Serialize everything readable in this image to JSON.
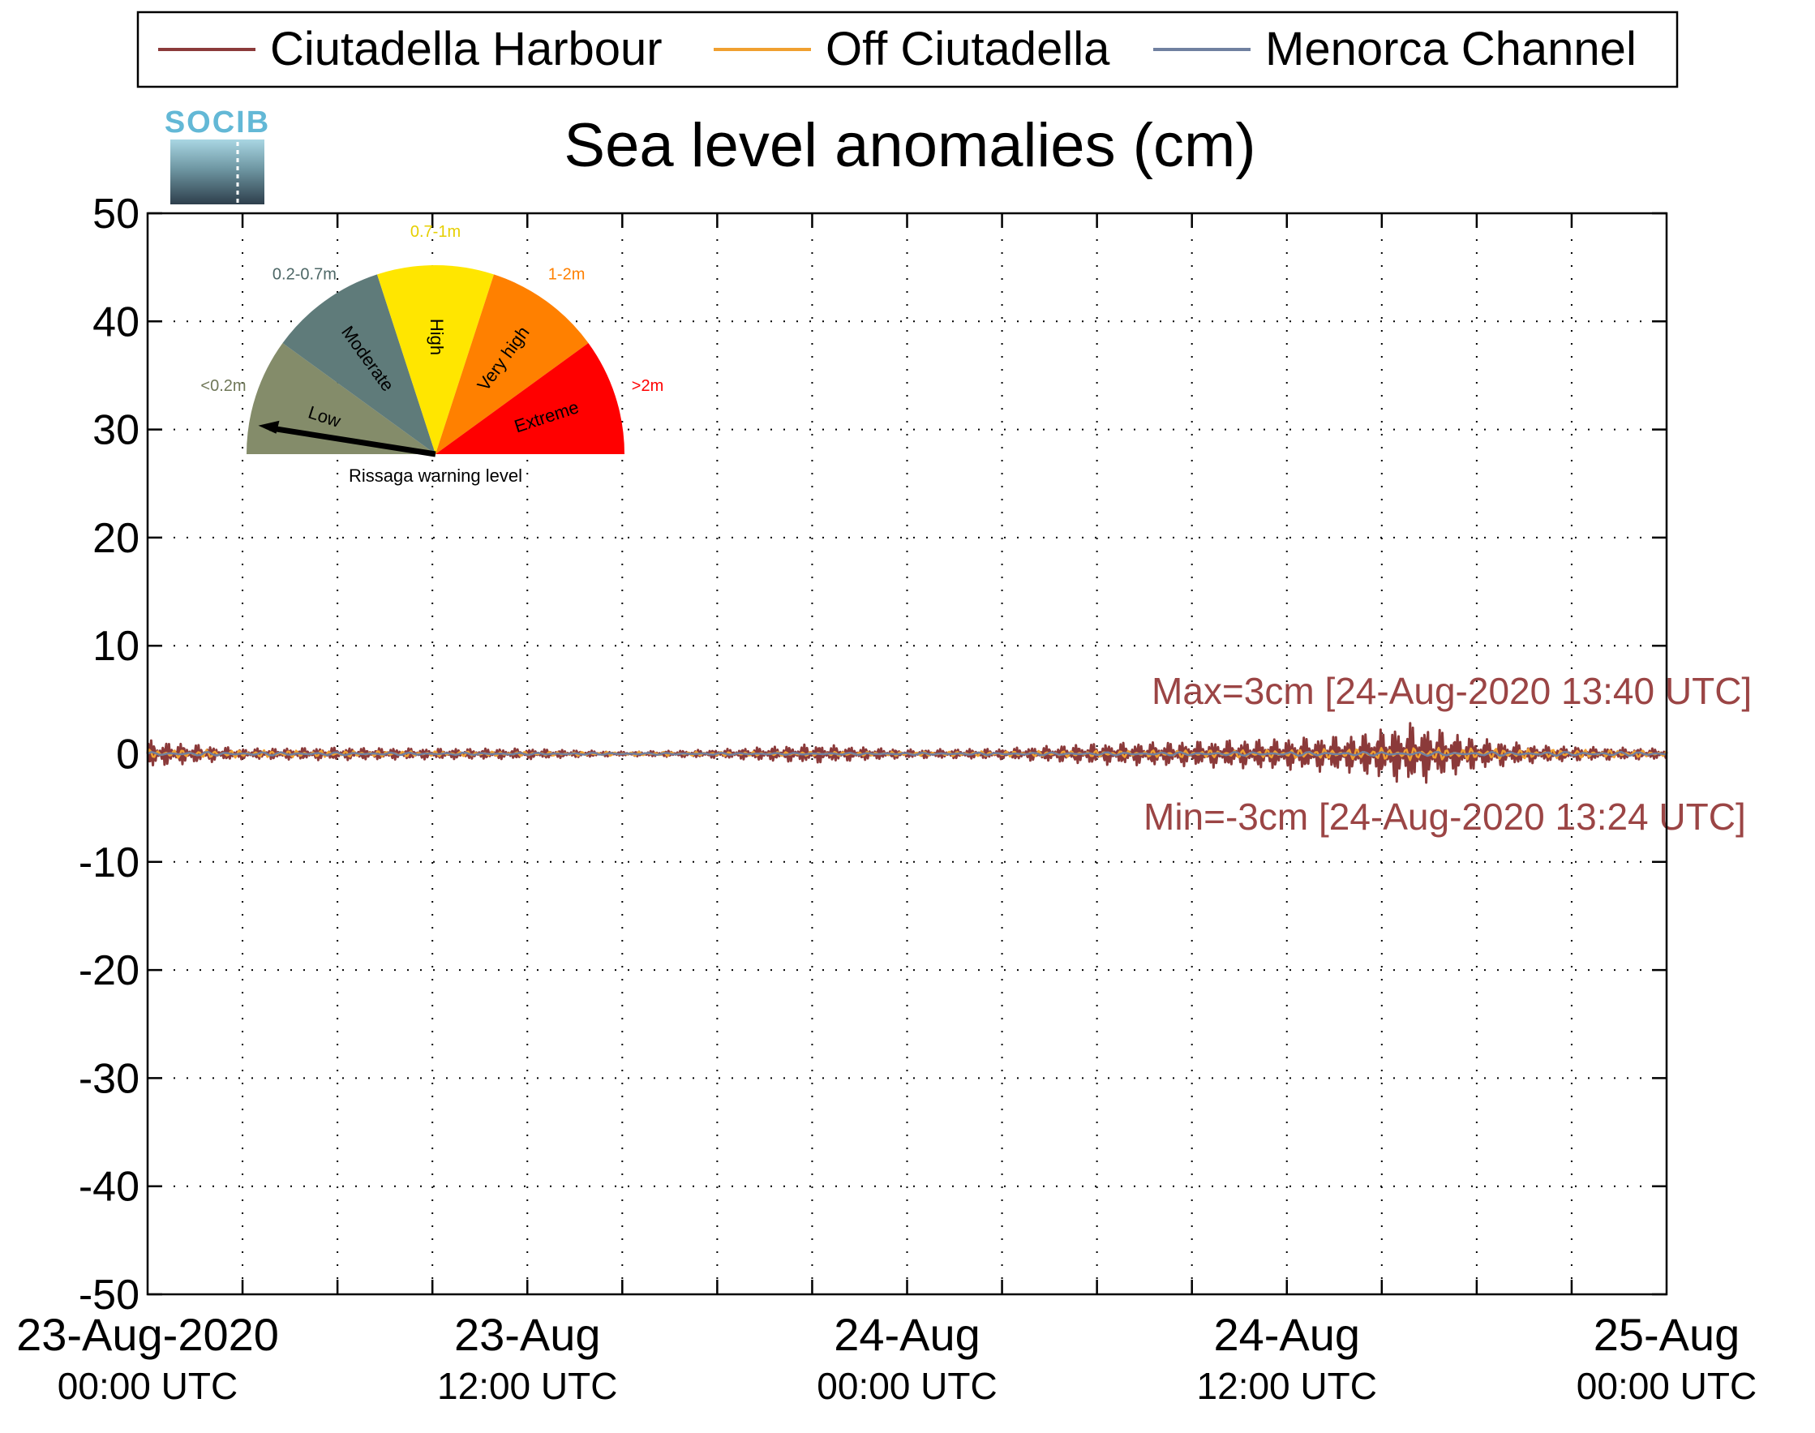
{
  "title": "Sea level anomalies (cm)",
  "logo_text": "SOCIB",
  "legend": {
    "placement": "top",
    "entries": [
      {
        "label": "Ciutadella Harbour",
        "color": "#8b3a3a"
      },
      {
        "label": "Off Ciutadella",
        "color": "#f0a030"
      },
      {
        "label": "Menorca Channel",
        "color": "#7080a0"
      }
    ]
  },
  "gauge": {
    "title": "Rissaga warning level",
    "level": "Low",
    "segments": [
      {
        "name": "Low",
        "range": "<0.2m",
        "color": "#848c6a",
        "label_color": "#6f7757"
      },
      {
        "name": "Moderate",
        "range": "0.2-0.7m",
        "color": "#5f7b7a",
        "label_color": "#4d6766"
      },
      {
        "name": "High",
        "range": "0.7-1m",
        "color": "#ffe600",
        "label_color": "#e6cf00"
      },
      {
        "name": "Very high",
        "range": "1-2m",
        "color": "#ff8000",
        "label_color": "#ff8000"
      },
      {
        "name": "Extreme",
        "range": ">2m",
        "color": "#ff0000",
        "label_color": "#ff0000"
      }
    ]
  },
  "annotations": {
    "max": "Max=3cm [24-Aug-2020 13:40 UTC]",
    "min": "Min=-3cm [24-Aug-2020 13:24 UTC]",
    "color": "#9b4545"
  },
  "chart_data": {
    "type": "line",
    "title": "Sea level anomalies (cm)",
    "xlabel": "",
    "ylabel": "",
    "x_range": [
      "2020-08-23 00:00 UTC",
      "2020-08-25 00:00 UTC"
    ],
    "ylim": [
      -50,
      50
    ],
    "yticks": [
      50,
      40,
      30,
      20,
      10,
      0,
      -10,
      -20,
      -30,
      -40,
      -50
    ],
    "yticklabels": [
      "50",
      "40",
      "30",
      "20",
      "10",
      "0",
      "-10",
      "-20",
      "-30",
      "-40",
      "-50"
    ],
    "xtick_labels": [
      {
        "x": "2020-08-23 00:00",
        "line1": "23-Aug-2020",
        "line2": "00:00 UTC"
      },
      {
        "x": "2020-08-23 12:00",
        "line1": "23-Aug",
        "line2": "12:00 UTC"
      },
      {
        "x": "2020-08-24 00:00",
        "line1": "24-Aug",
        "line2": "00:00 UTC"
      },
      {
        "x": "2020-08-24 12:00",
        "line1": "24-Aug",
        "line2": "12:00 UTC"
      },
      {
        "x": "2020-08-25 00:00",
        "line1": "25-Aug",
        "line2": "00:00 UTC"
      }
    ],
    "minor_xticks_hours": 3,
    "grid": true,
    "series": [
      {
        "name": "Ciutadella Harbour",
        "color": "#8b3a3a",
        "envelope_hours": [
          0,
          3,
          6,
          9,
          12,
          15,
          18,
          21,
          24,
          27,
          30,
          33,
          36,
          38,
          40,
          42,
          44,
          46,
          48
        ],
        "envelope_cm": [
          1.3,
          0.5,
          0.6,
          0.5,
          0.5,
          0.2,
          0.4,
          0.9,
          0.4,
          0.5,
          1.0,
          1.2,
          1.5,
          1.8,
          3.0,
          1.5,
          0.8,
          0.6,
          0.5
        ]
      },
      {
        "name": "Off Ciutadella",
        "color": "#f0a030",
        "envelope_hours": [
          0,
          12,
          24,
          36,
          40,
          48
        ],
        "envelope_cm": [
          0.4,
          0.2,
          0.2,
          0.4,
          0.6,
          0.3
        ]
      },
      {
        "name": "Menorca Channel",
        "color": "#7080a0",
        "envelope_hours": [
          0,
          12,
          24,
          36,
          48
        ],
        "envelope_cm": [
          0.2,
          0.1,
          0.1,
          0.2,
          0.2
        ]
      }
    ],
    "max": {
      "value": 3,
      "time": "2020-08-24 13:40 UTC"
    },
    "min": {
      "value": -3,
      "time": "2020-08-24 13:24 UTC"
    }
  }
}
